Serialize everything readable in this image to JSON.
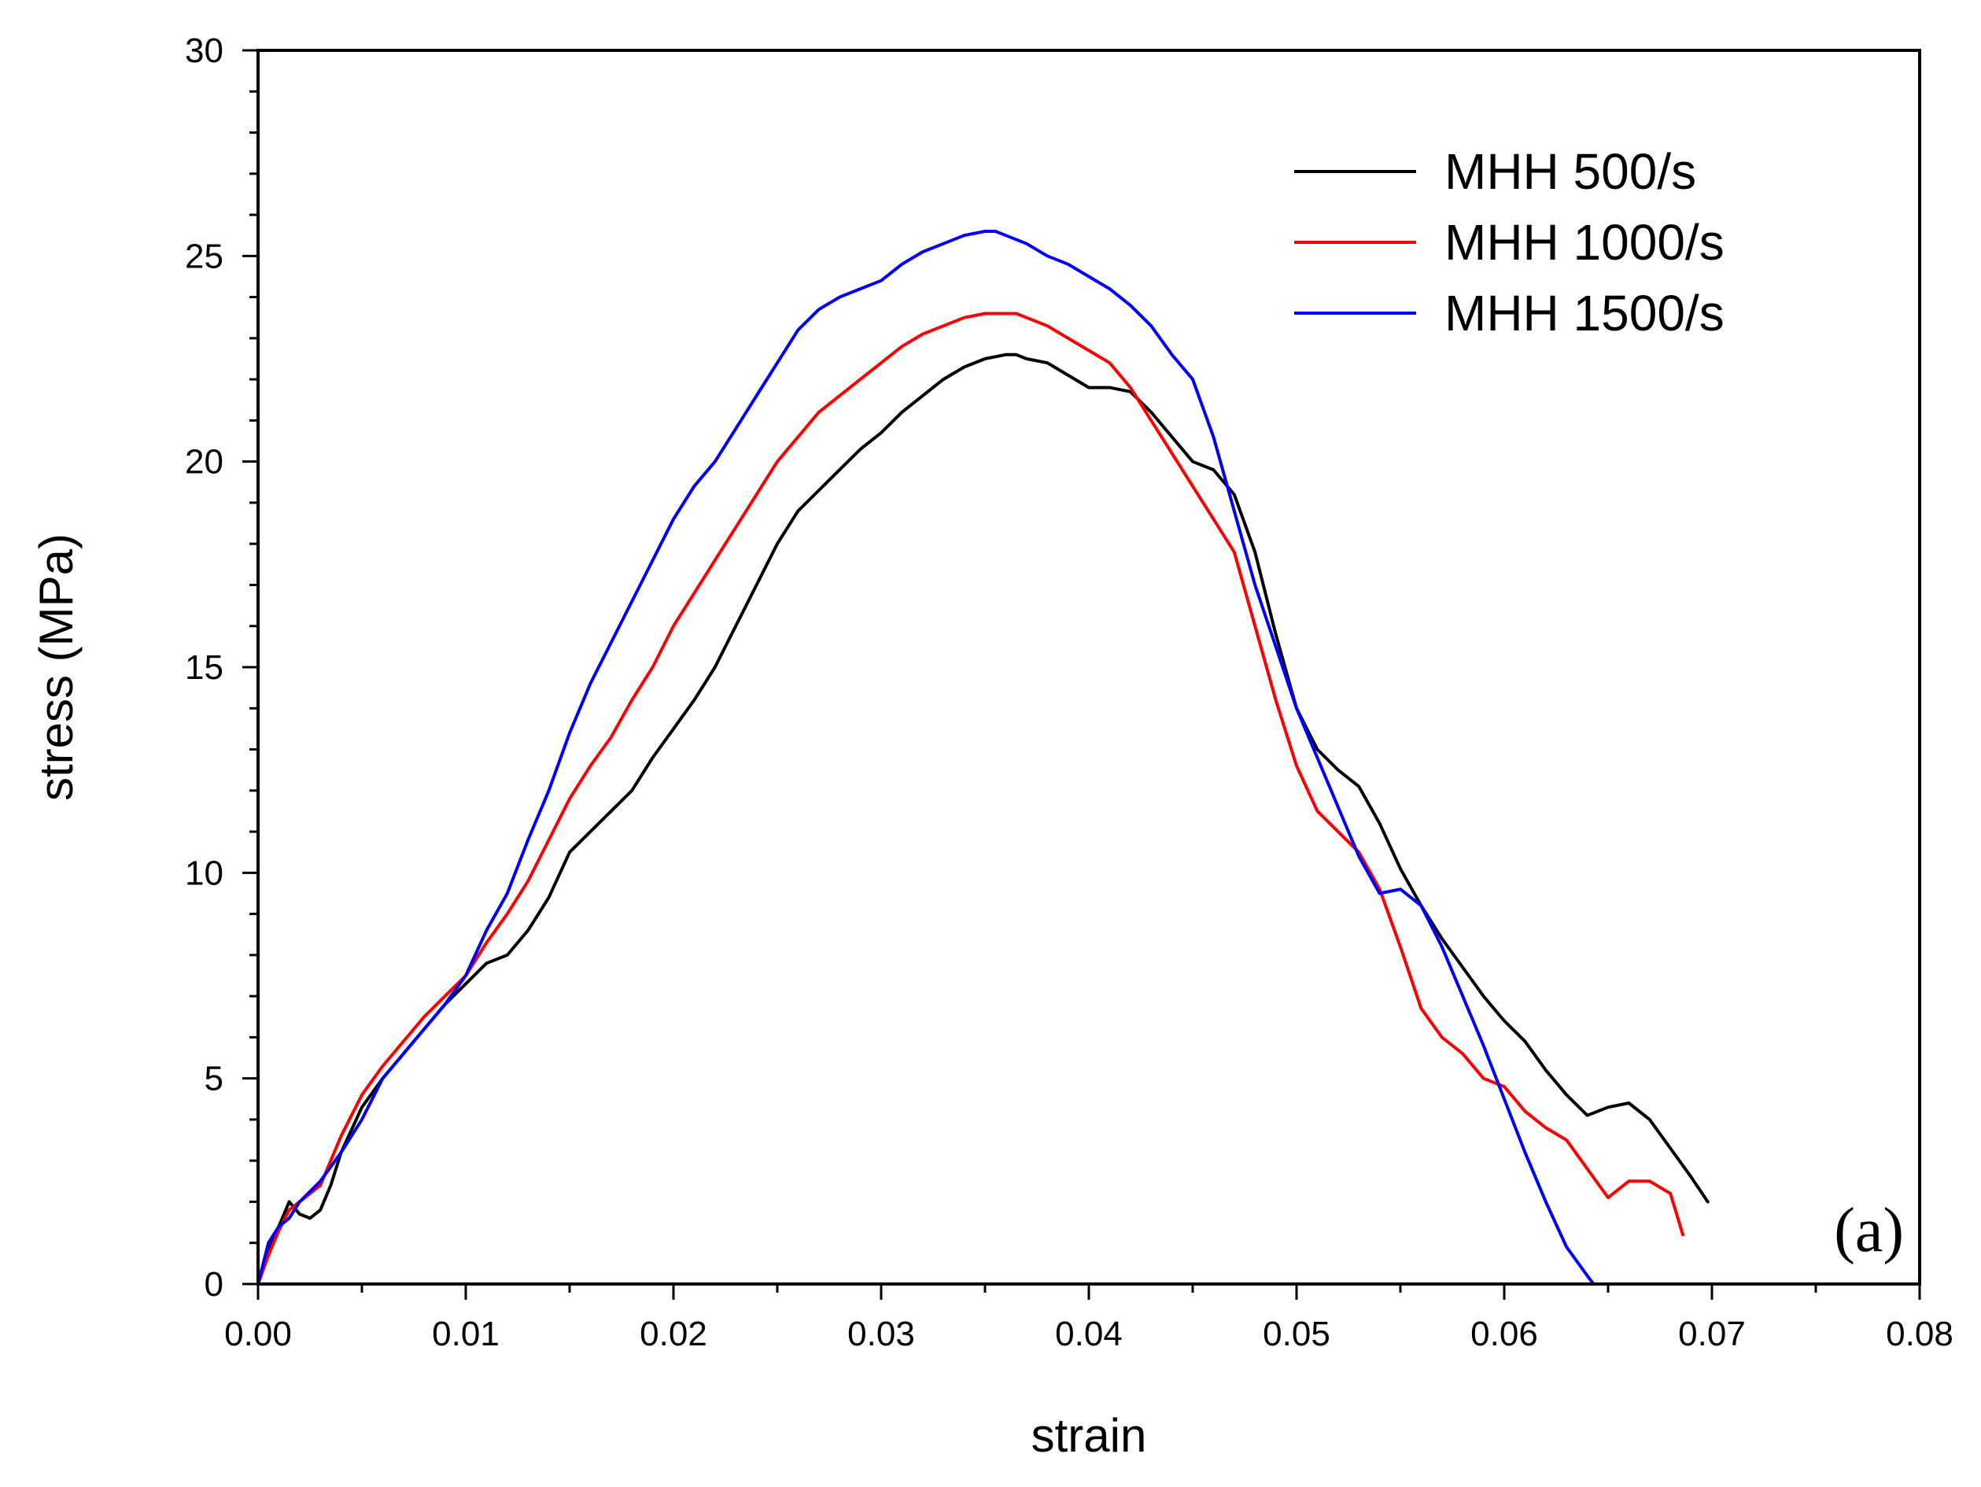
{
  "chart_data": {
    "type": "line",
    "title": "",
    "xlabel": "strain",
    "ylabel": "stress (MPa)",
    "xlim": [
      0,
      0.08
    ],
    "ylim": [
      0,
      30
    ],
    "x_ticks": [
      "0.00",
      "0.01",
      "0.02",
      "0.03",
      "0.04",
      "0.05",
      "0.06",
      "0.07",
      "0.08"
    ],
    "y_ticks": [
      "0",
      "5",
      "10",
      "15",
      "20",
      "25",
      "30"
    ],
    "grid": false,
    "legend_position": "top-right",
    "panel_label": "(a)",
    "series": [
      {
        "name": "MHH 500/s",
        "color": "#000000",
        "x": [
          0.0,
          0.0005,
          0.001,
          0.0015,
          0.002,
          0.0025,
          0.003,
          0.0035,
          0.004,
          0.005,
          0.006,
          0.007,
          0.008,
          0.009,
          0.01,
          0.011,
          0.012,
          0.013,
          0.014,
          0.015,
          0.016,
          0.017,
          0.018,
          0.019,
          0.02,
          0.021,
          0.022,
          0.023,
          0.024,
          0.025,
          0.026,
          0.027,
          0.028,
          0.029,
          0.03,
          0.031,
          0.032,
          0.033,
          0.034,
          0.035,
          0.036,
          0.0365,
          0.037,
          0.038,
          0.039,
          0.04,
          0.041,
          0.042,
          0.043,
          0.044,
          0.045,
          0.046,
          0.047,
          0.048,
          0.049,
          0.05,
          0.051,
          0.052,
          0.053,
          0.054,
          0.055,
          0.056,
          0.057,
          0.058,
          0.059,
          0.06,
          0.061,
          0.062,
          0.063,
          0.064,
          0.065,
          0.066,
          0.067,
          0.068,
          0.069,
          0.0698
        ],
        "y": [
          0.0,
          0.8,
          1.4,
          2.0,
          1.7,
          1.6,
          1.8,
          2.4,
          3.2,
          4.3,
          5.0,
          5.6,
          6.2,
          6.8,
          7.3,
          7.8,
          8.0,
          8.6,
          9.4,
          10.5,
          11.0,
          11.5,
          12.0,
          12.8,
          13.5,
          14.2,
          15.0,
          16.0,
          17.0,
          18.0,
          18.8,
          19.3,
          19.8,
          20.3,
          20.7,
          21.2,
          21.6,
          22.0,
          22.3,
          22.5,
          22.6,
          22.6,
          22.5,
          22.4,
          22.1,
          21.8,
          21.8,
          21.7,
          21.2,
          20.6,
          20.0,
          19.8,
          19.2,
          17.8,
          15.8,
          14.0,
          13.0,
          12.5,
          12.1,
          11.2,
          10.1,
          9.2,
          8.4,
          7.7,
          7.0,
          6.4,
          5.9,
          5.2,
          4.6,
          4.1,
          4.3,
          4.4,
          4.0,
          3.3,
          2.6,
          2.0
        ]
      },
      {
        "name": "MHH 1000/s",
        "color": "#ff0000",
        "x": [
          0.0,
          0.0005,
          0.001,
          0.0015,
          0.002,
          0.003,
          0.004,
          0.005,
          0.006,
          0.007,
          0.008,
          0.009,
          0.01,
          0.011,
          0.012,
          0.013,
          0.014,
          0.015,
          0.016,
          0.017,
          0.018,
          0.019,
          0.02,
          0.021,
          0.022,
          0.023,
          0.024,
          0.025,
          0.026,
          0.027,
          0.028,
          0.029,
          0.03,
          0.031,
          0.032,
          0.033,
          0.034,
          0.035,
          0.036,
          0.0365,
          0.037,
          0.038,
          0.039,
          0.04,
          0.041,
          0.042,
          0.043,
          0.044,
          0.045,
          0.046,
          0.047,
          0.048,
          0.049,
          0.05,
          0.051,
          0.052,
          0.053,
          0.054,
          0.055,
          0.056,
          0.057,
          0.058,
          0.059,
          0.06,
          0.061,
          0.062,
          0.063,
          0.064,
          0.065,
          0.066,
          0.067,
          0.068,
          0.0686
        ],
        "y": [
          0.0,
          0.7,
          1.3,
          1.8,
          2.0,
          2.4,
          3.6,
          4.6,
          5.3,
          5.9,
          6.5,
          7.0,
          7.5,
          8.3,
          9.0,
          9.8,
          10.8,
          11.8,
          12.6,
          13.3,
          14.2,
          15.0,
          16.0,
          16.8,
          17.6,
          18.4,
          19.2,
          20.0,
          20.6,
          21.2,
          21.6,
          22.0,
          22.4,
          22.8,
          23.1,
          23.3,
          23.5,
          23.6,
          23.6,
          23.6,
          23.5,
          23.3,
          23.0,
          22.7,
          22.4,
          21.8,
          21.0,
          20.2,
          19.4,
          18.6,
          17.8,
          16.0,
          14.2,
          12.6,
          11.5,
          11.0,
          10.5,
          9.6,
          8.2,
          6.7,
          6.0,
          5.6,
          5.0,
          4.8,
          4.2,
          3.8,
          3.5,
          2.8,
          2.1,
          2.5,
          2.5,
          2.2,
          1.2
        ]
      },
      {
        "name": "MHH 1500/s",
        "color": "#0000ff",
        "x": [
          0.0,
          0.0005,
          0.001,
          0.0015,
          0.002,
          0.003,
          0.004,
          0.005,
          0.006,
          0.007,
          0.008,
          0.009,
          0.01,
          0.011,
          0.012,
          0.013,
          0.014,
          0.015,
          0.016,
          0.017,
          0.018,
          0.019,
          0.02,
          0.021,
          0.022,
          0.023,
          0.024,
          0.025,
          0.026,
          0.027,
          0.028,
          0.029,
          0.03,
          0.031,
          0.032,
          0.033,
          0.034,
          0.035,
          0.0355,
          0.036,
          0.037,
          0.038,
          0.039,
          0.04,
          0.041,
          0.042,
          0.043,
          0.044,
          0.045,
          0.046,
          0.047,
          0.048,
          0.049,
          0.05,
          0.051,
          0.052,
          0.053,
          0.054,
          0.055,
          0.056,
          0.057,
          0.058,
          0.059,
          0.06,
          0.061,
          0.062,
          0.063,
          0.064,
          0.0643
        ],
        "y": [
          0.0,
          1.0,
          1.4,
          1.6,
          2.0,
          2.5,
          3.2,
          4.0,
          5.0,
          5.6,
          6.2,
          6.8,
          7.5,
          8.6,
          9.5,
          10.8,
          12.0,
          13.4,
          14.6,
          15.6,
          16.6,
          17.6,
          18.6,
          19.4,
          20.0,
          20.8,
          21.6,
          22.4,
          23.2,
          23.7,
          24.0,
          24.2,
          24.4,
          24.8,
          25.1,
          25.3,
          25.5,
          25.6,
          25.6,
          25.5,
          25.3,
          25.0,
          24.8,
          24.5,
          24.2,
          23.8,
          23.3,
          22.6,
          22.0,
          20.6,
          18.8,
          17.0,
          15.5,
          14.0,
          12.8,
          11.6,
          10.4,
          9.5,
          9.6,
          9.2,
          8.2,
          7.0,
          5.8,
          4.5,
          3.2,
          2.0,
          0.9,
          0.2,
          0.0
        ]
      }
    ]
  }
}
